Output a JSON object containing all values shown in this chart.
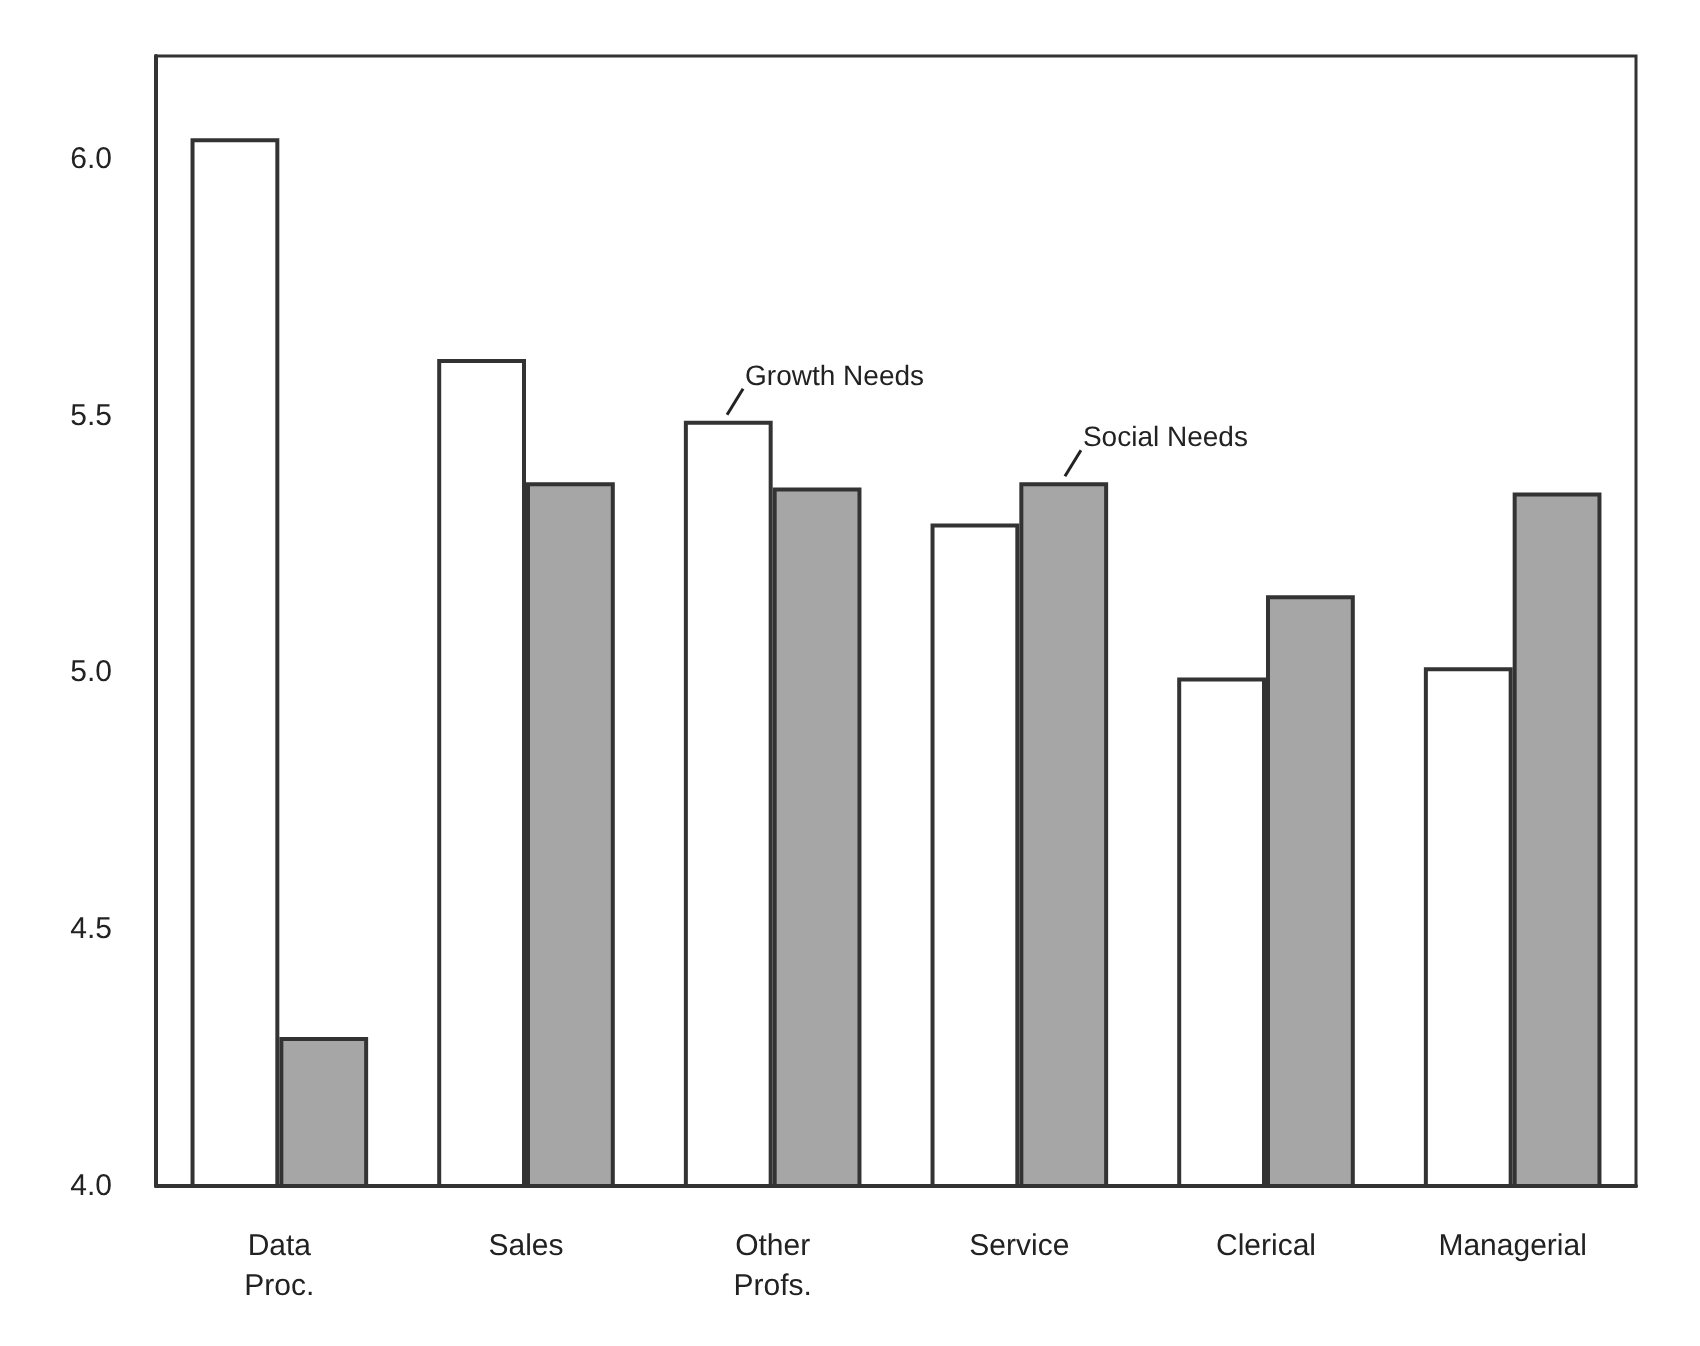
{
  "chart_data": {
    "type": "bar",
    "categories": [
      "Data\nProc.",
      "Sales",
      "Other\nProfs.",
      "Service",
      "Clerical",
      "Managerial"
    ],
    "series": [
      {
        "color": "#ffffff",
        "values": [
          6.04,
          5.61,
          5.49,
          5.29,
          4.99,
          5.01
        ]
      },
      {
        "color": "#a6a6a6",
        "values": [
          4.29,
          5.37,
          5.36,
          5.37,
          5.15,
          5.35
        ]
      }
    ],
    "ylim": [
      4.0,
      6.2
    ],
    "yticks": [
      {
        "value": 4,
        "label": "4.0"
      },
      {
        "value": 4.5,
        "label": "4.5"
      },
      {
        "value": 5,
        "label": "5.0"
      },
      {
        "value": 5.5,
        "label": "5.5"
      },
      {
        "value": 6,
        "label": "6.0"
      }
    ],
    "annotations": [
      {
        "text": "Growth Needs",
        "x": "Other\nProfs.",
        "y": 5.49
      },
      {
        "text": "Social Needs",
        "x": "Service",
        "y": 5.37
      }
    ],
    "grid": false
  }
}
